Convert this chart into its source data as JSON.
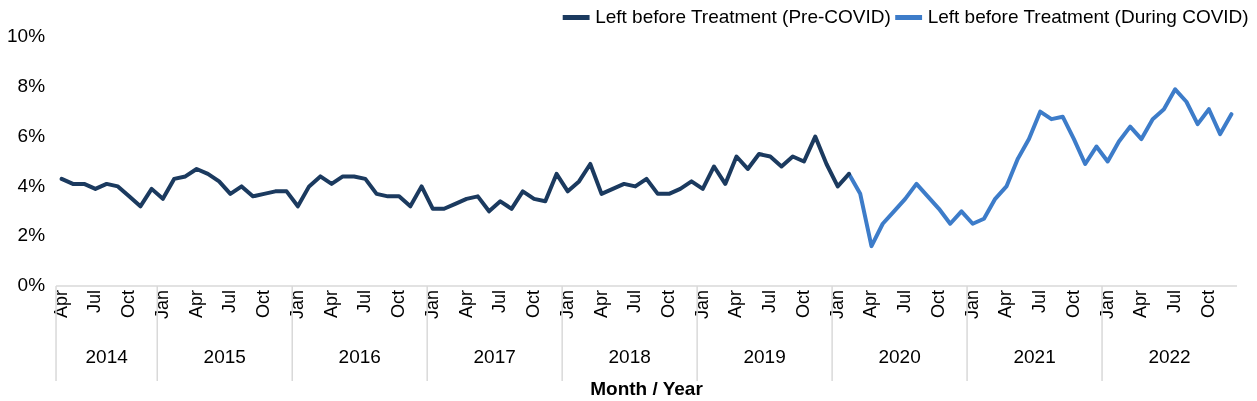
{
  "chart_data": {
    "type": "line",
    "xlabel": "Month / Year",
    "categories": [
      "Apr",
      null,
      null,
      "Jul",
      null,
      null,
      "Oct",
      null,
      null,
      "Jan",
      null,
      null,
      "Apr",
      null,
      null,
      "Jul",
      null,
      null,
      "Oct",
      null,
      null,
      "Jan",
      null,
      null,
      "Apr",
      null,
      null,
      "Jul",
      null,
      null,
      "Oct",
      null,
      null,
      "Jan",
      null,
      null,
      "Apr",
      null,
      null,
      "Jul",
      null,
      null,
      "Oct",
      null,
      null,
      "Jan",
      null,
      null,
      "Apr",
      null,
      null,
      "Jul",
      null,
      null,
      "Oct",
      null,
      null,
      "Jan",
      null,
      null,
      "Apr",
      null,
      null,
      "Jul",
      null,
      null,
      "Oct",
      null,
      null,
      "Jan",
      null,
      null,
      "Apr",
      null,
      null,
      "Jul",
      null,
      null,
      "Oct",
      null,
      null,
      "Jan",
      null,
      null,
      "Apr",
      null,
      null,
      "Jul",
      null,
      null,
      "Oct",
      null,
      null,
      "Jan",
      null,
      null,
      "Apr",
      null,
      null,
      "Jul",
      null,
      null,
      "Oct",
      null,
      null
    ],
    "series": [
      {
        "name": "Left before Treatment (Pre-COVID)",
        "color": "#1b3a5f",
        "values": [
          4.3,
          4.1,
          4.1,
          3.9,
          4.1,
          4.0,
          3.6,
          3.2,
          3.9,
          3.5,
          4.3,
          4.4,
          4.7,
          4.5,
          4.2,
          3.7,
          4.0,
          3.6,
          3.7,
          3.8,
          3.8,
          3.2,
          4.0,
          4.4,
          4.1,
          4.4,
          4.4,
          4.3,
          3.7,
          3.6,
          3.6,
          3.2,
          4.0,
          3.1,
          3.1,
          3.3,
          3.5,
          3.6,
          3.0,
          3.4,
          3.1,
          3.8,
          3.5,
          3.4,
          4.5,
          3.8,
          4.2,
          4.9,
          3.7,
          3.9,
          4.1,
          4.0,
          4.3,
          3.7,
          3.7,
          3.9,
          4.2,
          3.9,
          4.8,
          4.1,
          5.2,
          4.7,
          5.3,
          5.2,
          4.8,
          5.2,
          5.0,
          6.0,
          4.9,
          4.0,
          4.5,
          null,
          null,
          null,
          null,
          null,
          null,
          null,
          null,
          null,
          null,
          null,
          null,
          null,
          null,
          null,
          null,
          null,
          null,
          null,
          null,
          null,
          null,
          null,
          null,
          null,
          null,
          null,
          null,
          null,
          null,
          null,
          null,
          null,
          null
        ]
      },
      {
        "name": "Left before Treatment (During COVID)",
        "color": "#3d7cc9",
        "values": [
          null,
          null,
          null,
          null,
          null,
          null,
          null,
          null,
          null,
          null,
          null,
          null,
          null,
          null,
          null,
          null,
          null,
          null,
          null,
          null,
          null,
          null,
          null,
          null,
          null,
          null,
          null,
          null,
          null,
          null,
          null,
          null,
          null,
          null,
          null,
          null,
          null,
          null,
          null,
          null,
          null,
          null,
          null,
          null,
          null,
          null,
          null,
          null,
          null,
          null,
          null,
          null,
          null,
          null,
          null,
          null,
          null,
          null,
          null,
          null,
          null,
          null,
          null,
          null,
          null,
          null,
          null,
          null,
          null,
          null,
          4.5,
          3.7,
          1.6,
          2.5,
          3.0,
          3.5,
          4.1,
          3.6,
          3.1,
          2.5,
          3.0,
          2.5,
          2.7,
          3.5,
          4.0,
          5.1,
          5.9,
          7.0,
          6.7,
          6.8,
          5.9,
          4.9,
          5.6,
          5.0,
          5.8,
          6.4,
          5.9,
          6.7,
          7.1,
          7.9,
          7.4,
          6.5,
          7.1,
          6.1,
          6.9
        ]
      }
    ],
    "ylim": [
      0,
      10
    ],
    "yticks": [
      {
        "value": 0,
        "label": "0%"
      },
      {
        "value": 2,
        "label": "2%"
      },
      {
        "value": 4,
        "label": "4%"
      },
      {
        "value": 6,
        "label": "6%"
      },
      {
        "value": 8,
        "label": "8%"
      },
      {
        "value": 10,
        "label": "10%"
      }
    ],
    "annotations": [
      "2014",
      "2015",
      "2016",
      "2017",
      "2018",
      "2019",
      "2020",
      "2021",
      "2022"
    ],
    "legend": "top right",
    "grid": false
  }
}
